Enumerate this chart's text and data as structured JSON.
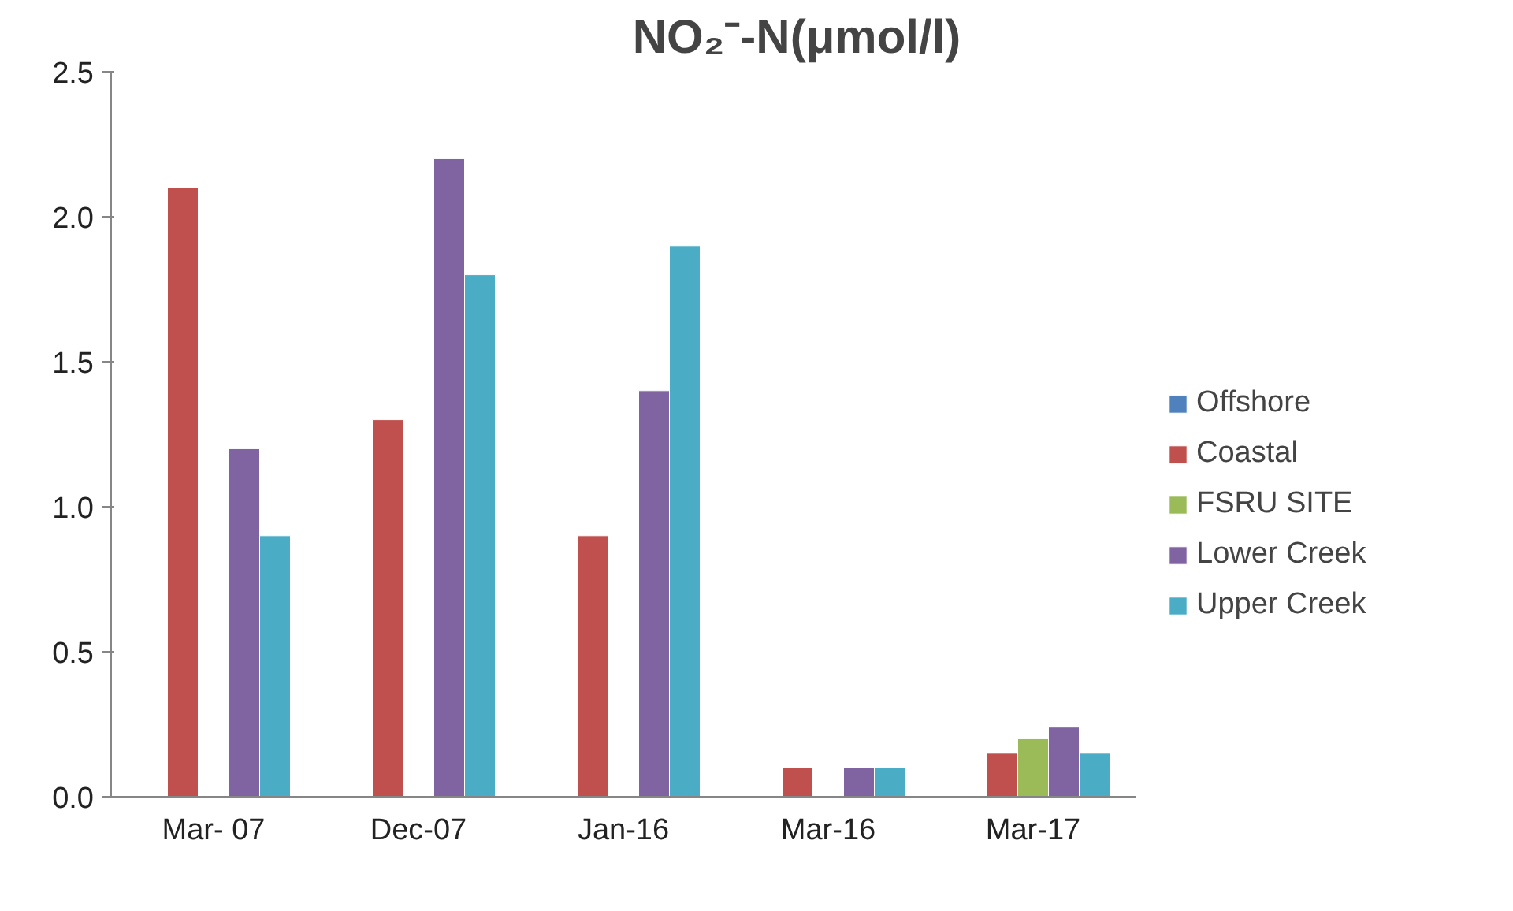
{
  "chart_data": {
    "type": "bar",
    "title": "NO₂⁻-N(μmol/l)",
    "categories": [
      "Mar- 07",
      "Dec-07",
      "Jan-16",
      "Mar-16",
      "Mar-17"
    ],
    "series": [
      {
        "name": "Offshore",
        "color": "#4f81bd",
        "values": [
          null,
          null,
          null,
          null,
          null
        ]
      },
      {
        "name": "Coastal",
        "color": "#c0504d",
        "values": [
          2.1,
          1.3,
          0.9,
          0.1,
          0.15
        ]
      },
      {
        "name": "FSRU SITE",
        "color": "#9bbb59",
        "values": [
          null,
          null,
          null,
          null,
          0.2
        ]
      },
      {
        "name": "Lower Creek",
        "color": "#8064a2",
        "values": [
          1.2,
          2.2,
          1.4,
          0.1,
          0.24
        ]
      },
      {
        "name": "Upper Creek",
        "color": "#4bacc6",
        "values": [
          0.9,
          1.8,
          1.9,
          0.1,
          0.15
        ]
      }
    ],
    "ylim": [
      0,
      2.5
    ],
    "yticks": [
      {
        "value": 0,
        "label": "0.0"
      },
      {
        "value": 0.5,
        "label": "0.5"
      },
      {
        "value": 1,
        "label": "1.0"
      },
      {
        "value": 1.5,
        "label": "1.5"
      },
      {
        "value": 2,
        "label": "2.0"
      },
      {
        "value": 2.5,
        "label": "2.5"
      }
    ],
    "grid": false,
    "legend": "right"
  }
}
